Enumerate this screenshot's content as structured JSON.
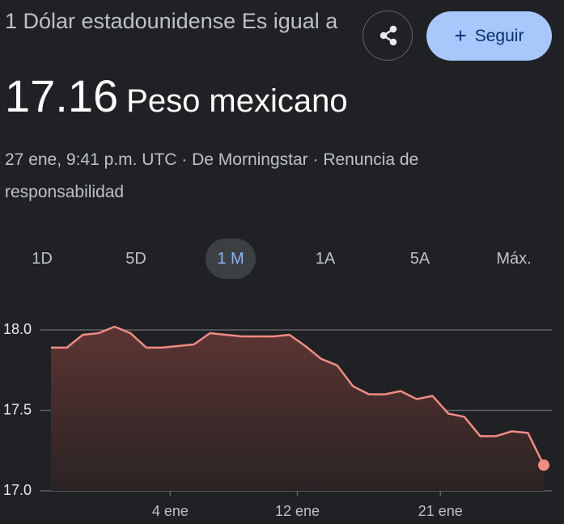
{
  "header": {
    "title": "1 Dólar estadounidense Es igual a",
    "value": "17.16",
    "unit": "Peso mexicano",
    "meta": "27 ene, 9:41 p.m. UTC · De Morningstar · Renuncia de responsabilidad"
  },
  "follow_button": "Seguir",
  "tabs": [
    "1D",
    "5D",
    "1 M",
    "1A",
    "5A",
    "Máx."
  ],
  "selected_tab": 2,
  "chart_data": {
    "type": "line",
    "x": [
      -3.5,
      -2.5,
      -1.5,
      -0.5,
      0.5,
      1.5,
      2.5,
      3.5,
      4.5,
      5.5,
      6.5,
      7.5,
      8.5,
      9.5,
      10.5,
      11.5,
      12.5,
      13.5,
      14.5,
      15.5,
      16.5,
      17.5,
      18.5,
      19.5,
      20.5,
      21.5,
      22.5,
      23.5,
      24.5,
      25.5,
      26.5,
      27.5
    ],
    "values": [
      17.89,
      17.89,
      17.97,
      17.98,
      18.02,
      17.98,
      17.89,
      17.89,
      17.9,
      17.91,
      17.98,
      17.97,
      17.96,
      17.96,
      17.96,
      17.97,
      17.9,
      17.82,
      17.78,
      17.65,
      17.6,
      17.6,
      17.62,
      17.57,
      17.59,
      17.48,
      17.46,
      17.34,
      17.34,
      17.37,
      17.36,
      17.16
    ],
    "color": "#f28b82",
    "xlim": [
      -3.5,
      27.5
    ],
    "xticks": [
      {
        "value": 4,
        "label": "4 ene"
      },
      {
        "value": 12,
        "label": "12 ene"
      },
      {
        "value": 21,
        "label": "21 ene"
      }
    ],
    "ylim": [
      17,
      18
    ],
    "yticks": [
      {
        "value": 17,
        "label": "17.0"
      },
      {
        "value": 17.5,
        "label": "17.5"
      },
      {
        "value": 18,
        "label": "18.0"
      }
    ],
    "grid": true
  }
}
